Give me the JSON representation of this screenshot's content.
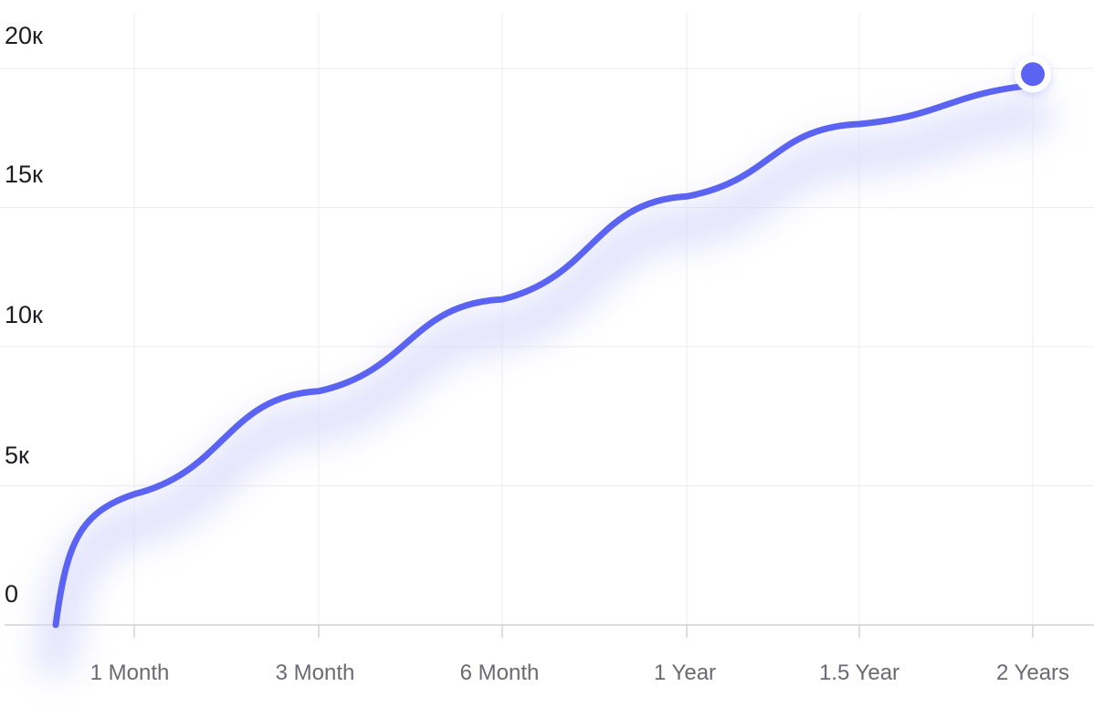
{
  "chart_data": {
    "type": "line",
    "title": "",
    "xlabel": "",
    "ylabel": "",
    "categories": [
      "1 Month",
      "3 Month",
      "6 Month",
      "1 Year",
      "1.5 Year",
      "2 Years"
    ],
    "x_ticks": [
      "1 Month",
      "3 Month",
      "6 Month",
      "1 Year",
      "1.5 Year",
      "2 Years"
    ],
    "y_ticks": [
      "0",
      "5к",
      "10к",
      "15к",
      "20к"
    ],
    "ylim": [
      0,
      20000
    ],
    "grid": true,
    "legend": "none",
    "series": [
      {
        "values": [
          4700,
          8400,
          11700,
          15400,
          18000,
          19400
        ],
        "start_value": 0,
        "color": "#5b63f2"
      }
    ],
    "end_marker": {
      "category": "2 Years",
      "value": 19400,
      "color": "#5b63f2"
    }
  },
  "colors": {
    "line": "#5b63f2",
    "glow": "#d7d9fb",
    "grid": "#ececef",
    "axis_text": "#1d1d22",
    "tick_text": "#6a6a72"
  }
}
